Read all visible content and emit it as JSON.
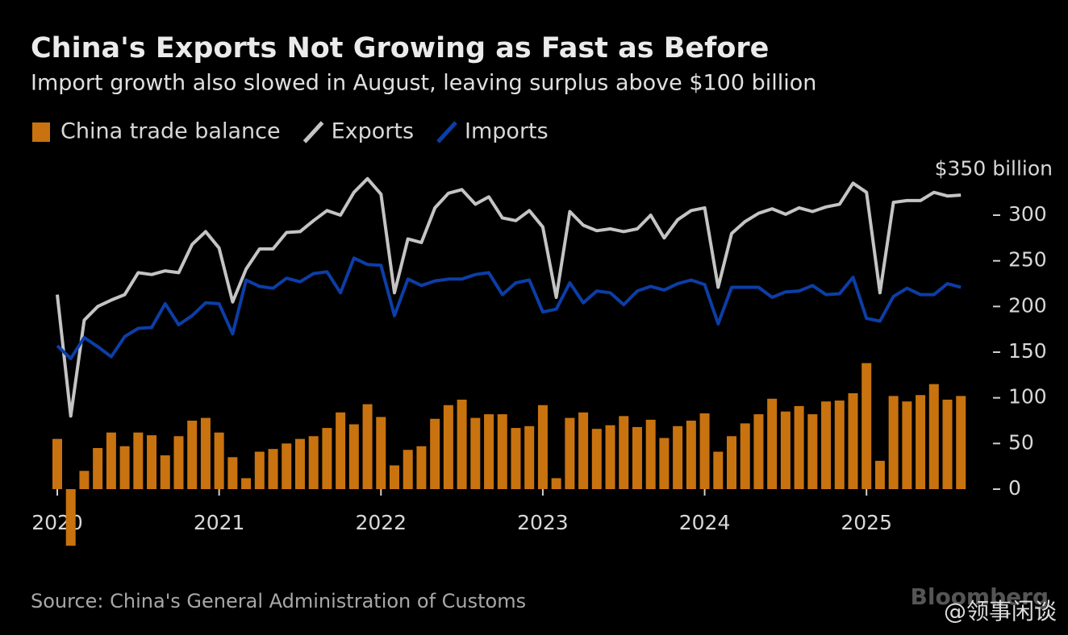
{
  "chart_data": {
    "type": "bar-line",
    "title": "China's Exports Not Growing as Fast as Before",
    "subtitle": "Import growth also slowed in August, leaving surplus above $100 billion",
    "source": "Source: China's General Administration of Customs",
    "brand": "Bloomberg",
    "watermark": "@领事闲谈",
    "categories": [
      "2020",
      null,
      null,
      null,
      null,
      null,
      null,
      null,
      null,
      null,
      null,
      null,
      "2021",
      null,
      null,
      null,
      null,
      null,
      null,
      null,
      null,
      null,
      null,
      null,
      "2022",
      null,
      null,
      null,
      null,
      null,
      null,
      null,
      null,
      null,
      null,
      null,
      "2023",
      null,
      null,
      null,
      null,
      null,
      null,
      null,
      null,
      null,
      null,
      null,
      "2024",
      null,
      null,
      null,
      null,
      null,
      null,
      null,
      null,
      null,
      null,
      null,
      "2025",
      null,
      null,
      null,
      null,
      null,
      null,
      null
    ],
    "series": [
      {
        "name": "China trade balance",
        "kind": "bar",
        "color": "#c8730f",
        "values": [
          55,
          -62,
          20,
          45,
          62,
          47,
          62,
          59,
          37,
          58,
          75,
          78,
          62,
          35,
          12,
          41,
          44,
          50,
          55,
          58,
          67,
          84,
          71,
          93,
          79,
          26,
          43,
          47,
          77,
          92,
          98,
          78,
          82,
          82,
          67,
          69,
          92,
          12,
          78,
          84,
          66,
          70,
          80,
          68,
          76,
          56,
          69,
          75,
          83,
          41,
          58,
          72,
          82,
          99,
          85,
          91,
          82,
          96,
          97,
          105,
          138,
          31,
          102,
          96,
          103,
          115,
          98,
          102
        ]
      },
      {
        "name": "Exports",
        "kind": "line",
        "color": "#c4c4c4",
        "values": [
          213,
          80,
          185,
          200,
          207,
          213,
          237,
          235,
          239,
          237,
          268,
          282,
          264,
          205,
          241,
          263,
          263,
          281,
          282,
          294,
          305,
          300,
          325,
          340,
          323,
          215,
          274,
          270,
          308,
          324,
          328,
          312,
          320,
          297,
          294,
          305,
          287,
          210,
          304,
          289,
          283,
          285,
          282,
          285,
          300,
          275,
          295,
          305,
          308,
          221,
          280,
          293,
          302,
          307,
          301,
          308,
          304,
          309,
          312,
          335,
          325,
          215,
          314,
          316,
          316,
          325,
          321,
          322
        ]
      },
      {
        "name": "Imports",
        "kind": "line",
        "color": "#0c3ea6",
        "values": [
          157,
          143,
          166,
          156,
          145,
          167,
          176,
          177,
          203,
          180,
          190,
          204,
          203,
          170,
          229,
          222,
          220,
          231,
          227,
          236,
          238,
          215,
          253,
          246,
          245,
          190,
          230,
          223,
          228,
          230,
          230,
          235,
          237,
          213,
          226,
          229,
          194,
          197,
          226,
          204,
          217,
          215,
          202,
          217,
          222,
          218,
          225,
          229,
          224,
          181,
          221,
          221,
          221,
          210,
          216,
          217,
          223,
          213,
          214,
          232,
          187,
          184,
          211,
          220,
          213,
          213,
          225,
          221
        ]
      }
    ],
    "ylim": [
      -75,
      360
    ],
    "yticks": [
      0,
      50,
      100,
      150,
      200,
      250,
      300,
      {
        "value": 350,
        "label": "$350 billion"
      }
    ]
  }
}
